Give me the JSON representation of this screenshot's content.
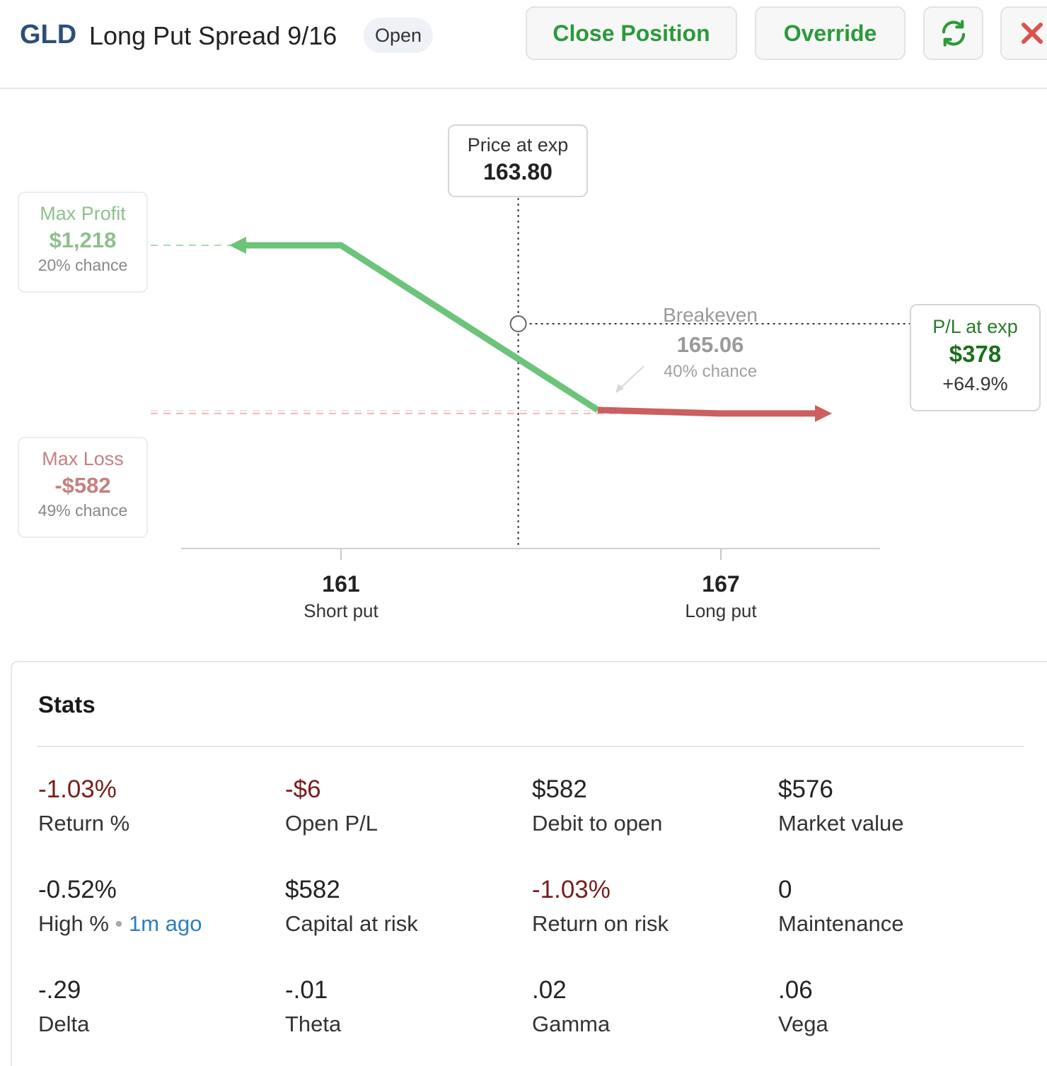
{
  "header": {
    "ticker": "GLD",
    "title": "Long Put Spread 9/16",
    "status": "Open",
    "close_label": "Close Position",
    "override_label": "Override",
    "accent": "#2a9a3a",
    "close_icon_color": "#d9534f"
  },
  "chart": {
    "max_profit": {
      "title": "Max Profit",
      "value": "$1,218",
      "chance": "20% chance"
    },
    "max_loss": {
      "title": "Max Loss",
      "value": "-$582",
      "chance": "49% chance"
    },
    "price_at_exp": {
      "title": "Price at exp",
      "value": "163.80"
    },
    "breakeven": {
      "title": "Breakeven",
      "value": "165.06",
      "chance": "40% chance"
    },
    "pl_at_exp": {
      "title": "P/L at exp",
      "value": "$378",
      "pct": "+64.9%"
    },
    "short_put": {
      "strike": "161",
      "label": "Short put"
    },
    "long_put": {
      "strike": "167",
      "label": "Long put"
    }
  },
  "chart_data": {
    "type": "line",
    "x": [
      161,
      163.8,
      165.06,
      167
    ],
    "y": [
      1218,
      378,
      0,
      -582
    ],
    "series_colors": {
      "profit": "#6cc47a",
      "loss": "#cc5f5f"
    }
  },
  "stats": {
    "title": "Stats",
    "items": [
      {
        "value": "-1.03%",
        "label": "Return %",
        "negative": true
      },
      {
        "value": "-$6",
        "label": "Open P/L",
        "negative": true
      },
      {
        "value": "$582",
        "label": "Debit to open",
        "negative": false
      },
      {
        "value": "$576",
        "label": "Market value",
        "negative": false
      },
      {
        "value": "-0.52%",
        "label": "High %",
        "ago": "1m ago",
        "negative": false
      },
      {
        "value": "$582",
        "label": "Capital at risk",
        "negative": false
      },
      {
        "value": "-1.03%",
        "label": "Return on risk",
        "negative": true
      },
      {
        "value": "0",
        "label": "Maintenance",
        "negative": false
      },
      {
        "value": "-.29",
        "label": "Delta",
        "negative": false
      },
      {
        "value": "-.01",
        "label": "Theta",
        "negative": false
      },
      {
        "value": ".02",
        "label": "Gamma",
        "negative": false
      },
      {
        "value": ".06",
        "label": "Vega",
        "negative": false
      }
    ]
  }
}
